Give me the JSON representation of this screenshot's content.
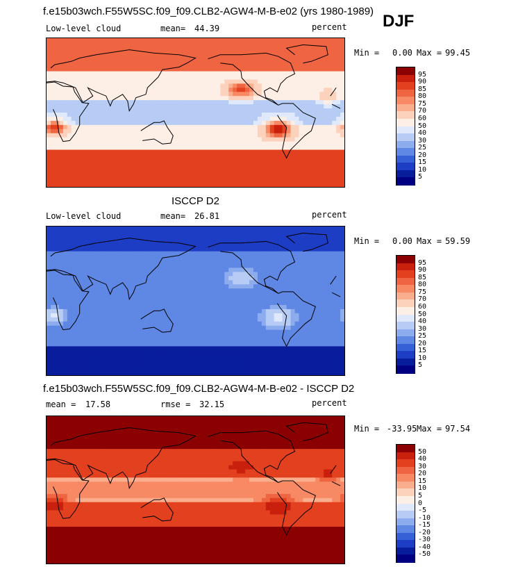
{
  "season": "DJF",
  "panels": [
    {
      "title": "f.e15b03wch.F55W5SC.f09_f09.CLB2-AGW4-M-B-e02 (yrs 1980-1989)",
      "left_label": "Low-level cloud",
      "stat_label": "mean=",
      "stat_value": "44.39",
      "stat2_label": "",
      "stat2_value": "",
      "unit": "percent",
      "min_label": "Min =",
      "min_value": "0.00",
      "max_label": "Max =",
      "max_value": "99.45",
      "field": "model",
      "colorbar": {
        "levels": [
          "95",
          "90",
          "85",
          "80",
          "75",
          "70",
          "60",
          "50",
          "40",
          "30",
          "25",
          "20",
          "15",
          "10",
          "5"
        ],
        "colors": [
          "#8b0000",
          "#c8200c",
          "#e2401e",
          "#ef6542",
          "#f78a64",
          "#fbae8e",
          "#fdd2bd",
          "#fdeee6",
          "#dfe9fb",
          "#b6ccf5",
          "#8cacee",
          "#5f87e4",
          "#3561d6",
          "#1c3dc4",
          "#081d9c",
          "#000080"
        ]
      }
    },
    {
      "title": "ISCCP D2",
      "left_label": "Low-level cloud",
      "stat_label": "mean=",
      "stat_value": "26.81",
      "stat2_label": "",
      "stat2_value": "",
      "unit": "percent",
      "min_label": "Min =",
      "min_value": "0.00",
      "max_label": "Max =",
      "max_value": "59.59",
      "field": "obs",
      "colorbar": {
        "levels": [
          "95",
          "90",
          "85",
          "80",
          "75",
          "70",
          "60",
          "50",
          "40",
          "30",
          "25",
          "20",
          "15",
          "10",
          "5"
        ],
        "colors": [
          "#8b0000",
          "#c8200c",
          "#e2401e",
          "#ef6542",
          "#f78a64",
          "#fbae8e",
          "#fdd2bd",
          "#fdeee6",
          "#dfe9fb",
          "#b6ccf5",
          "#8cacee",
          "#5f87e4",
          "#3561d6",
          "#1c3dc4",
          "#081d9c",
          "#000080"
        ]
      }
    },
    {
      "title": "f.e15b03wch.F55W5SC.f09_f09.CLB2-AGW4-M-B-e02 - ISCCP D2",
      "left_label": "mean =",
      "stat_label": "17.58",
      "stat_value": "",
      "stat2_label": "rmse =",
      "stat2_value": "32.15",
      "unit": "percent",
      "min_label": "Min =",
      "min_value": "-33.95",
      "max_label": "Max =",
      "max_value": "97.54",
      "field": "diff",
      "colorbar": {
        "levels": [
          "50",
          "40",
          "30",
          "20",
          "15",
          "10",
          "5",
          "0",
          "-5",
          "-10",
          "-15",
          "-20",
          "-30",
          "-40",
          "-50"
        ],
        "colors": [
          "#8b0000",
          "#c8200c",
          "#e2401e",
          "#ef6542",
          "#f78a64",
          "#fbae8e",
          "#fdd2bd",
          "#fdeee6",
          "#dfe9fb",
          "#b6ccf5",
          "#8cacee",
          "#5f87e4",
          "#3561d6",
          "#1c3dc4",
          "#081d9c",
          "#000080"
        ]
      }
    }
  ]
}
